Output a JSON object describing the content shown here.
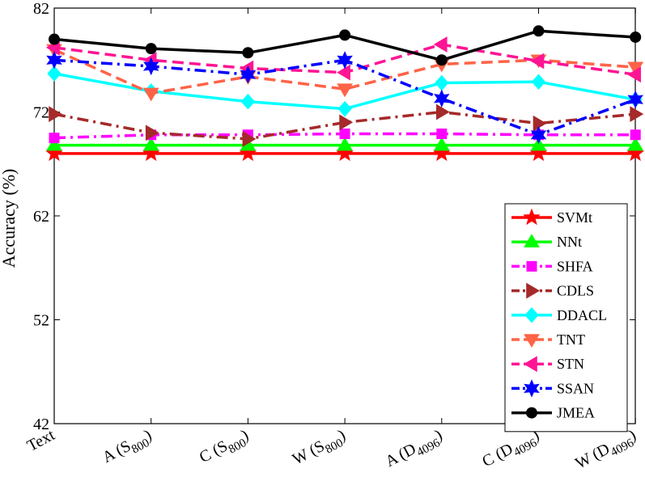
{
  "chart_data": {
    "type": "line",
    "title": "",
    "xlabel": "",
    "ylabel": "Accuracy (%)",
    "ylim": [
      42,
      82
    ],
    "yticks": [
      42,
      52,
      62,
      72,
      82
    ],
    "grid": "off",
    "legend_position": "bottom-right",
    "categories": [
      {
        "base": "Text",
        "sub": "",
        "close": ""
      },
      {
        "base": "A (S",
        "sub": "800",
        "close": ")"
      },
      {
        "base": "C (S",
        "sub": "800",
        "close": ")"
      },
      {
        "base": "W (S",
        "sub": "800",
        "close": ")"
      },
      {
        "base": "A (D",
        "sub": "4096",
        "close": ")"
      },
      {
        "base": "C (D",
        "sub": "4096",
        "close": ")"
      },
      {
        "base": "W (D",
        "sub": "4096",
        "close": ")"
      }
    ],
    "series": [
      {
        "name": "SVMt",
        "color": "#ff0000",
        "dash": "solid",
        "marker": "star5",
        "values": [
          68.0,
          68.0,
          68.0,
          68.0,
          68.0,
          68.0,
          68.0
        ]
      },
      {
        "name": "NNt",
        "color": "#00ff00",
        "dash": "solid",
        "marker": "triUp",
        "values": [
          68.8,
          68.8,
          68.8,
          68.8,
          68.8,
          68.8,
          68.8
        ]
      },
      {
        "name": "SHFA",
        "color": "#ff00ff",
        "dash": "dashdot",
        "marker": "square",
        "values": [
          69.5,
          69.8,
          69.8,
          69.9,
          69.9,
          69.8,
          69.8
        ]
      },
      {
        "name": "CDLS",
        "color": "#a52a2a",
        "dash": "dashdot",
        "marker": "triRight",
        "values": [
          71.8,
          70.0,
          69.4,
          71.0,
          72.0,
          70.9,
          71.8
        ]
      },
      {
        "name": "DDACL",
        "color": "#00ffff",
        "dash": "solid",
        "marker": "diamond",
        "values": [
          75.7,
          74.0,
          73.0,
          72.3,
          74.8,
          74.9,
          73.2
        ]
      },
      {
        "name": "TNT",
        "color": "#ff6347",
        "dash": "dashed",
        "marker": "triDown",
        "values": [
          78.0,
          73.8,
          75.4,
          74.2,
          76.6,
          77.0,
          76.3
        ]
      },
      {
        "name": "STN",
        "color": "#ff1493",
        "dash": "dashed",
        "marker": "triLeft",
        "values": [
          78.2,
          77.0,
          76.2,
          75.8,
          78.5,
          76.9,
          75.6
        ]
      },
      {
        "name": "SSAN",
        "color": "#0000ff",
        "dash": "dashdot",
        "marker": "star6",
        "values": [
          77.0,
          76.4,
          75.6,
          77.0,
          73.3,
          69.8,
          73.2
        ]
      },
      {
        "name": "JMEA",
        "color": "#000000",
        "dash": "solid",
        "marker": "circle",
        "values": [
          79.0,
          78.1,
          77.7,
          79.4,
          77.0,
          79.8,
          79.2
        ]
      }
    ]
  }
}
